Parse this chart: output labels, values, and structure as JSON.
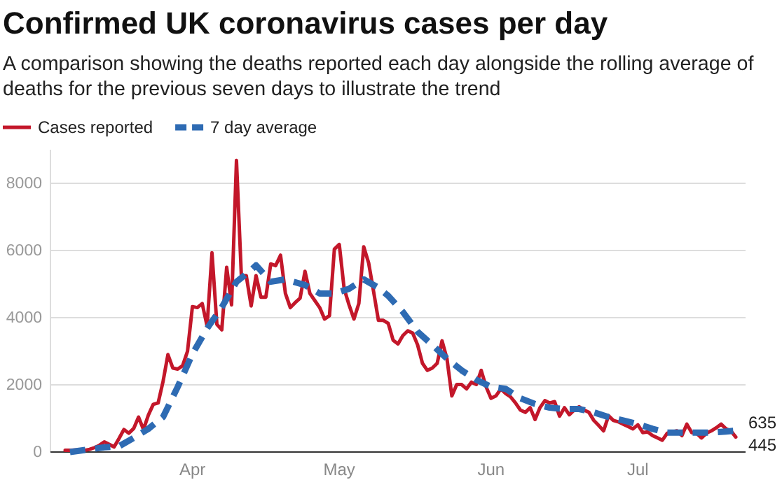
{
  "chart_data": {
    "type": "line",
    "title": "Confirmed UK coronavirus cases per day",
    "subtitle": "A comparison showing the deaths reported each day alongside the rolling average of deaths for the previous seven days to illustrate the trend",
    "xlim": [
      "--03-03",
      "--07-23"
    ],
    "xticks": [
      {
        "value": "--04-01",
        "label": "Apr"
      },
      {
        "value": "--05-01",
        "label": "May"
      },
      {
        "value": "--06-01",
        "label": "Jun"
      },
      {
        "value": "--07-01",
        "label": "Jul"
      }
    ],
    "ylim": [
      0,
      9000
    ],
    "yticks": [
      0,
      2000,
      4000,
      6000,
      8000
    ],
    "grid": "y",
    "legend": "top left",
    "marker": "none",
    "series": [
      {
        "name": "Cases reported",
        "color": "#c3172a",
        "line_style": "solid",
        "x": [
          "--03-06",
          "--03-07",
          "--03-08",
          "--03-09",
          "--03-10",
          "--03-11",
          "--03-12",
          "--03-13",
          "--03-14",
          "--03-15",
          "--03-16",
          "--03-17",
          "--03-18",
          "--03-19",
          "--03-20",
          "--03-21",
          "--03-22",
          "--03-23",
          "--03-24",
          "--03-25",
          "--03-26",
          "--03-27",
          "--03-28",
          "--03-29",
          "--03-30",
          "--03-31",
          "--04-01",
          "--04-02",
          "--04-03",
          "--04-04",
          "--04-05",
          "--04-06",
          "--04-07",
          "--04-08",
          "--04-09",
          "--04-10",
          "--04-11",
          "--04-12",
          "--04-13",
          "--04-14",
          "--04-15",
          "--04-16",
          "--04-17",
          "--04-18",
          "--04-19",
          "--04-20",
          "--04-21",
          "--04-22",
          "--04-23",
          "--04-24",
          "--04-25",
          "--04-26",
          "--04-27",
          "--04-28",
          "--04-29",
          "--04-30",
          "--05-01",
          "--05-02",
          "--05-03",
          "--05-04",
          "--05-05",
          "--05-06",
          "--05-07",
          "--05-08",
          "--05-09",
          "--05-10",
          "--05-11",
          "--05-12",
          "--05-13",
          "--05-14",
          "--05-15",
          "--05-16",
          "--05-17",
          "--05-18",
          "--05-19",
          "--05-20",
          "--05-21",
          "--05-22",
          "--05-23",
          "--05-24",
          "--05-25",
          "--05-26",
          "--05-27",
          "--05-28",
          "--05-29",
          "--05-30",
          "--05-31",
          "--06-01",
          "--06-02",
          "--06-03",
          "--06-04",
          "--06-05",
          "--06-06",
          "--06-07",
          "--06-08",
          "--06-09",
          "--06-10",
          "--06-11",
          "--06-12",
          "--06-13",
          "--06-14",
          "--06-15",
          "--06-16",
          "--06-17",
          "--06-18",
          "--06-19",
          "--06-20",
          "--06-21",
          "--06-22",
          "--06-23",
          "--06-24",
          "--06-25",
          "--06-26",
          "--06-27",
          "--06-28",
          "--06-29",
          "--06-30",
          "--07-01",
          "--07-02",
          "--07-03",
          "--07-04",
          "--07-05",
          "--07-06",
          "--07-07",
          "--07-08",
          "--07-09",
          "--07-10",
          "--07-11",
          "--07-12",
          "--07-13",
          "--07-14",
          "--07-15",
          "--07-16",
          "--07-17",
          "--07-18",
          "--07-19",
          "--07-20",
          "--07-21"
        ],
        "values": [
          50,
          50,
          60,
          70,
          50,
          80,
          130,
          200,
          300,
          230,
          150,
          400,
          670,
          560,
          700,
          1040,
          670,
          1100,
          1420,
          1460,
          2100,
          2900,
          2500,
          2470,
          2570,
          3000,
          4330,
          4300,
          4420,
          3750,
          5930,
          3800,
          3640,
          5500,
          4380,
          8680,
          5250,
          5250,
          4350,
          5250,
          4610,
          4610,
          5600,
          5550,
          5860,
          4720,
          4300,
          4450,
          4580,
          5380,
          4720,
          4510,
          4300,
          3960,
          4060,
          6040,
          6180,
          4860,
          4380,
          3960,
          4420,
          6110,
          5630,
          4790,
          3920,
          3920,
          3830,
          3330,
          3220,
          3470,
          3610,
          3540,
          3190,
          2640,
          2430,
          2500,
          2640,
          3310,
          2780,
          1670,
          2010,
          2010,
          1880,
          2080,
          2010,
          2430,
          1940,
          1600,
          1670,
          1880,
          1740,
          1640,
          1460,
          1250,
          1180,
          1320,
          970,
          1320,
          1530,
          1460,
          1500,
          1070,
          1320,
          1110,
          1250,
          1350,
          1250,
          1180,
          940,
          790,
          630,
          1080,
          940,
          900,
          830,
          760,
          690,
          810,
          580,
          600,
          490,
          420,
          350,
          560,
          600,
          630,
          490,
          830,
          580,
          560,
          420,
          560,
          630,
          720,
          830,
          690,
          630,
          445
        ],
        "value_labels": [
          null,
          null,
          null,
          null,
          null,
          null,
          null,
          null,
          null,
          null,
          null,
          null,
          null,
          null,
          null,
          null,
          null,
          null,
          null,
          null,
          null,
          null,
          null,
          null,
          null,
          null,
          null,
          null,
          null,
          null,
          null,
          null,
          null,
          null,
          null,
          null,
          null,
          null,
          null,
          null,
          null,
          null,
          null,
          null,
          null,
          null,
          null,
          null,
          null,
          null,
          null,
          null,
          null,
          null,
          null,
          null,
          null,
          null,
          null,
          null,
          null,
          null,
          null,
          null,
          null,
          null,
          null,
          null,
          null,
          null,
          null,
          null,
          null,
          null,
          null,
          null,
          null,
          null,
          null,
          null,
          null,
          null,
          null,
          null,
          null,
          null,
          null,
          null,
          null,
          null,
          null,
          null,
          null,
          null,
          null,
          null,
          null,
          null,
          null,
          null,
          null,
          null,
          null,
          null,
          null,
          null,
          null,
          null,
          null,
          null,
          null,
          null,
          null,
          null,
          null,
          null,
          null,
          null,
          null,
          null,
          null,
          null,
          null,
          null,
          null,
          null,
          null,
          null,
          null,
          null,
          null,
          null,
          null,
          null,
          null,
          null,
          null,
          "445"
        ]
      },
      {
        "name": "7 day average",
        "color": "#2e6bb3",
        "line_style": "dashed",
        "x": [
          "--03-07",
          "--03-14",
          "--03-17",
          "--03-20",
          "--03-23",
          "--03-26",
          "--03-29",
          "--04-01",
          "--04-04",
          "--04-07",
          "--04-10",
          "--04-13",
          "--04-14",
          "--04-17",
          "--04-20",
          "--04-24",
          "--04-27",
          "--04-30",
          "--05-03",
          "--05-06",
          "--05-09",
          "--05-11",
          "--05-14",
          "--05-17",
          "--05-20",
          "--05-23",
          "--05-26",
          "--05-29",
          "--06-01",
          "--06-04",
          "--06-07",
          "--06-10",
          "--06-13",
          "--06-16",
          "--06-19",
          "--06-22",
          "--06-25",
          "--06-28",
          "--07-01",
          "--07-04",
          "--07-07",
          "--07-10",
          "--07-13",
          "--07-16",
          "--07-19",
          "--07-21"
        ],
        "values": [
          0,
          140,
          170,
          420,
          690,
          1040,
          1940,
          2920,
          3680,
          4310,
          5070,
          5420,
          5560,
          5070,
          5140,
          4970,
          4720,
          4720,
          4860,
          5140,
          4890,
          4650,
          4170,
          3580,
          3190,
          2780,
          2430,
          2150,
          1940,
          1880,
          1600,
          1430,
          1320,
          1280,
          1280,
          1180,
          1040,
          940,
          830,
          690,
          580,
          580,
          580,
          580,
          610,
          635
        ],
        "value_labels": [
          null,
          null,
          null,
          null,
          null,
          null,
          null,
          null,
          null,
          null,
          null,
          null,
          null,
          null,
          null,
          null,
          null,
          null,
          null,
          null,
          null,
          null,
          null,
          null,
          null,
          null,
          null,
          null,
          null,
          null,
          null,
          null,
          null,
          null,
          null,
          null,
          null,
          null,
          null,
          null,
          null,
          null,
          null,
          null,
          null,
          "635"
        ]
      }
    ]
  }
}
